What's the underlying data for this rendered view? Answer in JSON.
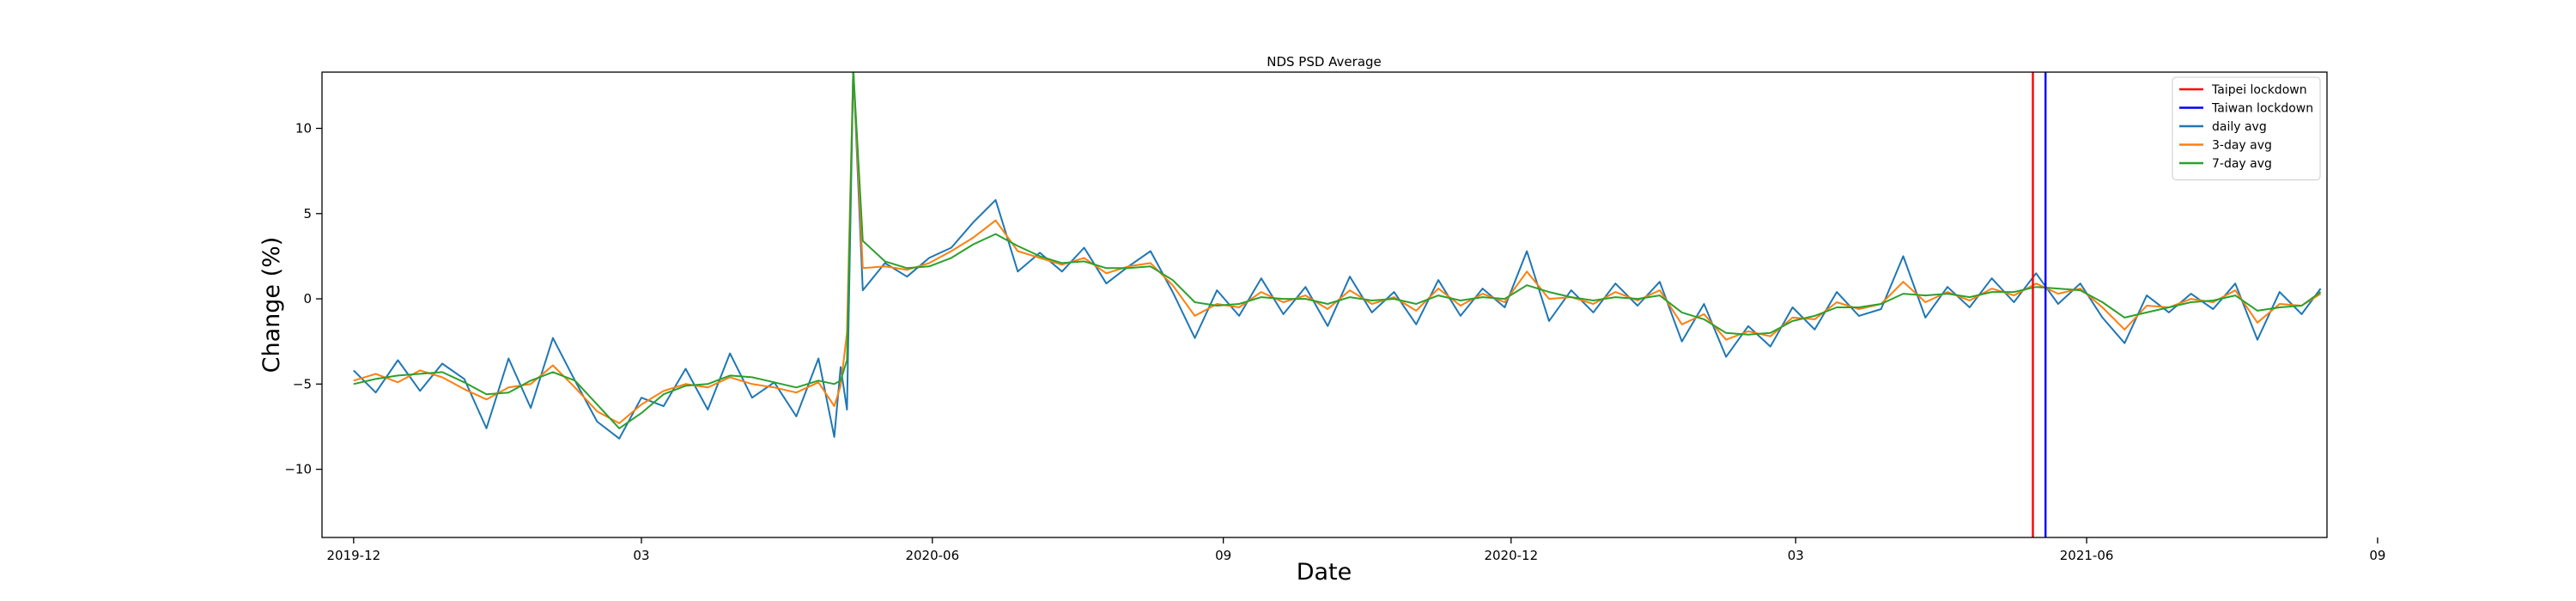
{
  "chart_data": {
    "type": "line",
    "title": "NDS PSD Average",
    "xlabel": "Date",
    "ylabel": "Change (%)",
    "x_axis": {
      "type": "date",
      "range": [
        "2019-11-21",
        "2021-08-16"
      ],
      "ticks": [
        {
          "date": "2019-12-01",
          "label": "2019-12"
        },
        {
          "date": "2020-03-01",
          "label": "03"
        },
        {
          "date": "2020-06-01",
          "label": "2020-06"
        },
        {
          "date": "2020-09-01",
          "label": "09"
        },
        {
          "date": "2020-12-01",
          "label": "2020-12"
        },
        {
          "date": "2021-03-01",
          "label": "03"
        },
        {
          "date": "2021-06-01",
          "label": "2021-06"
        },
        {
          "date": "2021-09-01",
          "label": "09"
        }
      ]
    },
    "y_axis": {
      "range": [
        -14,
        13.3
      ],
      "ticks": [
        -10,
        -5,
        0,
        5,
        10
      ]
    },
    "grid": false,
    "legend_position": "top-right",
    "vlines": [
      {
        "name": "Taipei lockdown",
        "date": "2021-05-15",
        "color": "#ff0000"
      },
      {
        "name": "Taiwan lockdown",
        "date": "2021-05-19",
        "color": "#0000ff"
      }
    ],
    "series": [
      {
        "name": "daily avg",
        "color": "#1f77b4",
        "x": [
          "2019-12-01",
          "2019-12-08",
          "2019-12-15",
          "2019-12-22",
          "2019-12-29",
          "2020-01-05",
          "2020-01-12",
          "2020-01-19",
          "2020-01-26",
          "2020-02-02",
          "2020-02-09",
          "2020-02-16",
          "2020-02-23",
          "2020-03-01",
          "2020-03-08",
          "2020-03-15",
          "2020-03-22",
          "2020-03-29",
          "2020-04-05",
          "2020-04-12",
          "2020-04-19",
          "2020-04-26",
          "2020-05-01",
          "2020-05-03",
          "2020-05-05",
          "2020-05-07",
          "2020-05-10",
          "2020-05-17",
          "2020-05-24",
          "2020-05-31",
          "2020-06-07",
          "2020-06-14",
          "2020-06-21",
          "2020-06-28",
          "2020-07-05",
          "2020-07-12",
          "2020-07-19",
          "2020-07-26",
          "2020-08-02",
          "2020-08-09",
          "2020-08-16",
          "2020-08-23",
          "2020-08-30",
          "2020-09-06",
          "2020-09-13",
          "2020-09-20",
          "2020-09-27",
          "2020-10-04",
          "2020-10-11",
          "2020-10-18",
          "2020-10-25",
          "2020-11-01",
          "2020-11-08",
          "2020-11-15",
          "2020-11-22",
          "2020-11-29",
          "2020-12-06",
          "2020-12-13",
          "2020-12-20",
          "2020-12-27",
          "2021-01-03",
          "2021-01-10",
          "2021-01-17",
          "2021-01-24",
          "2021-01-31",
          "2021-02-07",
          "2021-02-14",
          "2021-02-21",
          "2021-02-28",
          "2021-03-07",
          "2021-03-14",
          "2021-03-21",
          "2021-03-28",
          "2021-04-04",
          "2021-04-11",
          "2021-04-18",
          "2021-04-25",
          "2021-05-02",
          "2021-05-09",
          "2021-05-16",
          "2021-05-23",
          "2021-05-30",
          "2021-06-06",
          "2021-06-13",
          "2021-06-20",
          "2021-06-27",
          "2021-07-04",
          "2021-07-11",
          "2021-07-18",
          "2021-07-25",
          "2021-08-01",
          "2021-08-08",
          "2021-08-14"
        ],
        "values": [
          -4.2,
          -5.5,
          -3.6,
          -5.4,
          -3.8,
          -4.7,
          -7.6,
          -3.5,
          -6.4,
          -2.3,
          -4.8,
          -7.2,
          -8.2,
          -5.8,
          -6.3,
          -4.1,
          -6.5,
          -3.2,
          -5.8,
          -4.9,
          -6.9,
          -3.5,
          -8.1,
          -4.0,
          -6.5,
          13.5,
          0.5,
          2.1,
          1.3,
          2.4,
          3.0,
          4.5,
          5.8,
          1.6,
          2.7,
          1.6,
          3.0,
          0.9,
          1.9,
          2.8,
          0.4,
          -2.3,
          0.5,
          -1.0,
          1.2,
          -0.9,
          0.7,
          -1.6,
          1.3,
          -0.8,
          0.4,
          -1.5,
          1.1,
          -1.0,
          0.6,
          -0.5,
          2.8,
          -1.3,
          0.5,
          -0.8,
          0.9,
          -0.4,
          1.0,
          -2.5,
          -0.3,
          -3.4,
          -1.6,
          -2.8,
          -0.5,
          -1.8,
          0.4,
          -1.0,
          -0.6,
          2.5,
          -1.1,
          0.7,
          -0.5,
          1.2,
          -0.2,
          1.5,
          -0.3,
          0.9,
          -1.1,
          -2.6,
          0.2,
          -0.8,
          0.3,
          -0.6,
          0.9,
          -2.4,
          0.4,
          -0.9,
          0.6
        ]
      },
      {
        "name": "3-day avg",
        "color": "#ff7f0e",
        "x": [
          "2019-12-01",
          "2019-12-08",
          "2019-12-15",
          "2019-12-22",
          "2019-12-29",
          "2020-01-05",
          "2020-01-12",
          "2020-01-19",
          "2020-01-26",
          "2020-02-02",
          "2020-02-09",
          "2020-02-16",
          "2020-02-23",
          "2020-03-01",
          "2020-03-08",
          "2020-03-15",
          "2020-03-22",
          "2020-03-29",
          "2020-04-05",
          "2020-04-12",
          "2020-04-19",
          "2020-04-26",
          "2020-05-01",
          "2020-05-03",
          "2020-05-05",
          "2020-05-07",
          "2020-05-10",
          "2020-05-17",
          "2020-05-24",
          "2020-05-31",
          "2020-06-07",
          "2020-06-14",
          "2020-06-21",
          "2020-06-28",
          "2020-07-05",
          "2020-07-12",
          "2020-07-19",
          "2020-07-26",
          "2020-08-02",
          "2020-08-09",
          "2020-08-16",
          "2020-08-23",
          "2020-08-30",
          "2020-09-06",
          "2020-09-13",
          "2020-09-20",
          "2020-09-27",
          "2020-10-04",
          "2020-10-11",
          "2020-10-18",
          "2020-10-25",
          "2020-11-01",
          "2020-11-08",
          "2020-11-15",
          "2020-11-22",
          "2020-11-29",
          "2020-12-06",
          "2020-12-13",
          "2020-12-20",
          "2020-12-27",
          "2021-01-03",
          "2021-01-10",
          "2021-01-17",
          "2021-01-24",
          "2021-01-31",
          "2021-02-07",
          "2021-02-14",
          "2021-02-21",
          "2021-02-28",
          "2021-03-07",
          "2021-03-14",
          "2021-03-21",
          "2021-03-28",
          "2021-04-04",
          "2021-04-11",
          "2021-04-18",
          "2021-04-25",
          "2021-05-02",
          "2021-05-09",
          "2021-05-16",
          "2021-05-23",
          "2021-05-30",
          "2021-06-06",
          "2021-06-13",
          "2021-06-20",
          "2021-06-27",
          "2021-07-04",
          "2021-07-11",
          "2021-07-18",
          "2021-07-25",
          "2021-08-01",
          "2021-08-08",
          "2021-08-14"
        ],
        "values": [
          -4.8,
          -4.4,
          -4.9,
          -4.2,
          -4.6,
          -5.3,
          -5.9,
          -5.2,
          -5.0,
          -3.9,
          -5.2,
          -6.6,
          -7.3,
          -6.2,
          -5.4,
          -5.0,
          -5.2,
          -4.6,
          -5.0,
          -5.2,
          -5.5,
          -4.9,
          -6.3,
          -5.1,
          -2.0,
          13.5,
          1.8,
          1.9,
          1.7,
          2.1,
          2.8,
          3.6,
          4.6,
          2.8,
          2.4,
          2.0,
          2.4,
          1.5,
          1.9,
          2.1,
          0.8,
          -1.0,
          -0.3,
          -0.5,
          0.4,
          -0.2,
          0.2,
          -0.6,
          0.5,
          -0.3,
          0.1,
          -0.7,
          0.6,
          -0.4,
          0.3,
          -0.2,
          1.6,
          0.0,
          0.1,
          -0.3,
          0.4,
          -0.1,
          0.5,
          -1.5,
          -0.9,
          -2.4,
          -1.9,
          -2.2,
          -1.1,
          -1.2,
          -0.2,
          -0.6,
          -0.3,
          1.0,
          -0.2,
          0.4,
          -0.1,
          0.6,
          0.2,
          0.9,
          0.3,
          0.6,
          -0.5,
          -1.8,
          -0.4,
          -0.5,
          0.0,
          -0.2,
          0.5,
          -1.4,
          -0.3,
          -0.4,
          0.3
        ]
      },
      {
        "name": "7-day avg",
        "color": "#2ca02c",
        "x": [
          "2019-12-01",
          "2019-12-08",
          "2019-12-15",
          "2019-12-22",
          "2019-12-29",
          "2020-01-05",
          "2020-01-12",
          "2020-01-19",
          "2020-01-26",
          "2020-02-02",
          "2020-02-09",
          "2020-02-16",
          "2020-02-23",
          "2020-03-01",
          "2020-03-08",
          "2020-03-15",
          "2020-03-22",
          "2020-03-29",
          "2020-04-05",
          "2020-04-12",
          "2020-04-19",
          "2020-04-26",
          "2020-05-01",
          "2020-05-03",
          "2020-05-05",
          "2020-05-07",
          "2020-05-10",
          "2020-05-17",
          "2020-05-24",
          "2020-05-31",
          "2020-06-07",
          "2020-06-14",
          "2020-06-21",
          "2020-06-28",
          "2020-07-05",
          "2020-07-12",
          "2020-07-19",
          "2020-07-26",
          "2020-08-02",
          "2020-08-09",
          "2020-08-16",
          "2020-08-23",
          "2020-08-30",
          "2020-09-06",
          "2020-09-13",
          "2020-09-20",
          "2020-09-27",
          "2020-10-04",
          "2020-10-11",
          "2020-10-18",
          "2020-10-25",
          "2020-11-01",
          "2020-11-08",
          "2020-11-15",
          "2020-11-22",
          "2020-11-29",
          "2020-12-06",
          "2020-12-13",
          "2020-12-20",
          "2020-12-27",
          "2021-01-03",
          "2021-01-10",
          "2021-01-17",
          "2021-01-24",
          "2021-01-31",
          "2021-02-07",
          "2021-02-14",
          "2021-02-21",
          "2021-02-28",
          "2021-03-07",
          "2021-03-14",
          "2021-03-21",
          "2021-03-28",
          "2021-04-04",
          "2021-04-11",
          "2021-04-18",
          "2021-04-25",
          "2021-05-02",
          "2021-05-09",
          "2021-05-16",
          "2021-05-23",
          "2021-05-30",
          "2021-06-06",
          "2021-06-13",
          "2021-06-20",
          "2021-06-27",
          "2021-07-04",
          "2021-07-11",
          "2021-07-18",
          "2021-07-25",
          "2021-08-01",
          "2021-08-08",
          "2021-08-14"
        ],
        "values": [
          -5.0,
          -4.7,
          -4.5,
          -4.4,
          -4.3,
          -4.9,
          -5.6,
          -5.5,
          -4.8,
          -4.3,
          -4.8,
          -6.2,
          -7.6,
          -6.7,
          -5.6,
          -5.1,
          -5.0,
          -4.5,
          -4.6,
          -4.9,
          -5.2,
          -4.8,
          -5.0,
          -4.8,
          -3.6,
          13.5,
          3.4,
          2.2,
          1.8,
          1.9,
          2.4,
          3.2,
          3.8,
          3.1,
          2.5,
          2.1,
          2.2,
          1.8,
          1.8,
          1.9,
          1.1,
          -0.2,
          -0.4,
          -0.3,
          0.1,
          0.0,
          0.0,
          -0.3,
          0.1,
          -0.1,
          0.0,
          -0.3,
          0.2,
          -0.1,
          0.1,
          0.0,
          0.8,
          0.4,
          0.1,
          -0.1,
          0.1,
          0.0,
          0.2,
          -0.8,
          -1.2,
          -2.0,
          -2.1,
          -2.0,
          -1.3,
          -1.0,
          -0.5,
          -0.5,
          -0.3,
          0.3,
          0.2,
          0.3,
          0.1,
          0.4,
          0.4,
          0.7,
          0.6,
          0.5,
          -0.2,
          -1.1,
          -0.8,
          -0.5,
          -0.2,
          -0.1,
          0.2,
          -0.7,
          -0.5,
          -0.4,
          0.4
        ]
      }
    ]
  }
}
